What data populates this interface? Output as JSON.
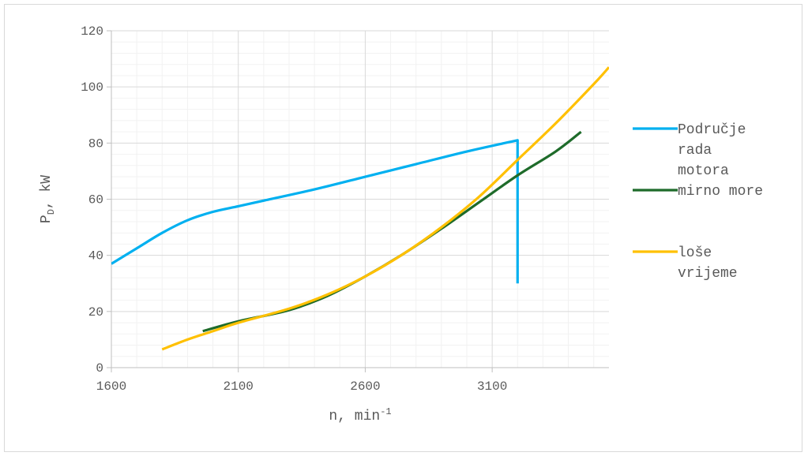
{
  "chart_data": {
    "type": "line",
    "xlabel": {
      "main": "n, min",
      "sup": "-1"
    },
    "ylabel": {
      "main": "P",
      "sub": "D",
      "rest": ", kW"
    },
    "xlim": [
      1600,
      3560
    ],
    "ylim": [
      0,
      120
    ],
    "x_ticks": [
      1600,
      2100,
      2600,
      3100
    ],
    "y_ticks": [
      0,
      20,
      40,
      60,
      80,
      100,
      120
    ],
    "grid": true,
    "legend_position": "right",
    "series": [
      {
        "name_lines": [
          "Područje",
          "rada",
          "motora"
        ],
        "color": "#00b0f0",
        "points": [
          [
            1600,
            37
          ],
          [
            1700,
            42.5
          ],
          [
            1800,
            48
          ],
          [
            1900,
            52.5
          ],
          [
            2000,
            55.5
          ],
          [
            2100,
            57.5
          ],
          [
            2200,
            59.5
          ],
          [
            2400,
            63.5
          ],
          [
            2600,
            68
          ],
          [
            2800,
            72.5
          ],
          [
            3000,
            77
          ],
          [
            3200,
            81
          ],
          [
            3200,
            30
          ]
        ]
      },
      {
        "name_lines": [
          "mirno more"
        ],
        "color": "#1e6b2a",
        "points": [
          [
            1960,
            13
          ],
          [
            2100,
            16.5
          ],
          [
            2300,
            20.5
          ],
          [
            2450,
            25.5
          ],
          [
            2600,
            32.5
          ],
          [
            2750,
            40.5
          ],
          [
            2900,
            49.5
          ],
          [
            3050,
            59
          ],
          [
            3200,
            68.5
          ],
          [
            3350,
            77
          ],
          [
            3450,
            84
          ]
        ]
      },
      {
        "name_lines": [
          "loše",
          "vrijeme"
        ],
        "color": "#ffc000",
        "points": [
          [
            1800,
            6.5
          ],
          [
            1900,
            10
          ],
          [
            2000,
            13
          ],
          [
            2100,
            16
          ],
          [
            2300,
            21
          ],
          [
            2450,
            26
          ],
          [
            2600,
            32.5
          ],
          [
            2750,
            40.5
          ],
          [
            2900,
            50
          ],
          [
            3050,
            61
          ],
          [
            3200,
            74
          ],
          [
            3350,
            87
          ],
          [
            3500,
            101
          ],
          [
            3560,
            107
          ]
        ]
      }
    ]
  }
}
